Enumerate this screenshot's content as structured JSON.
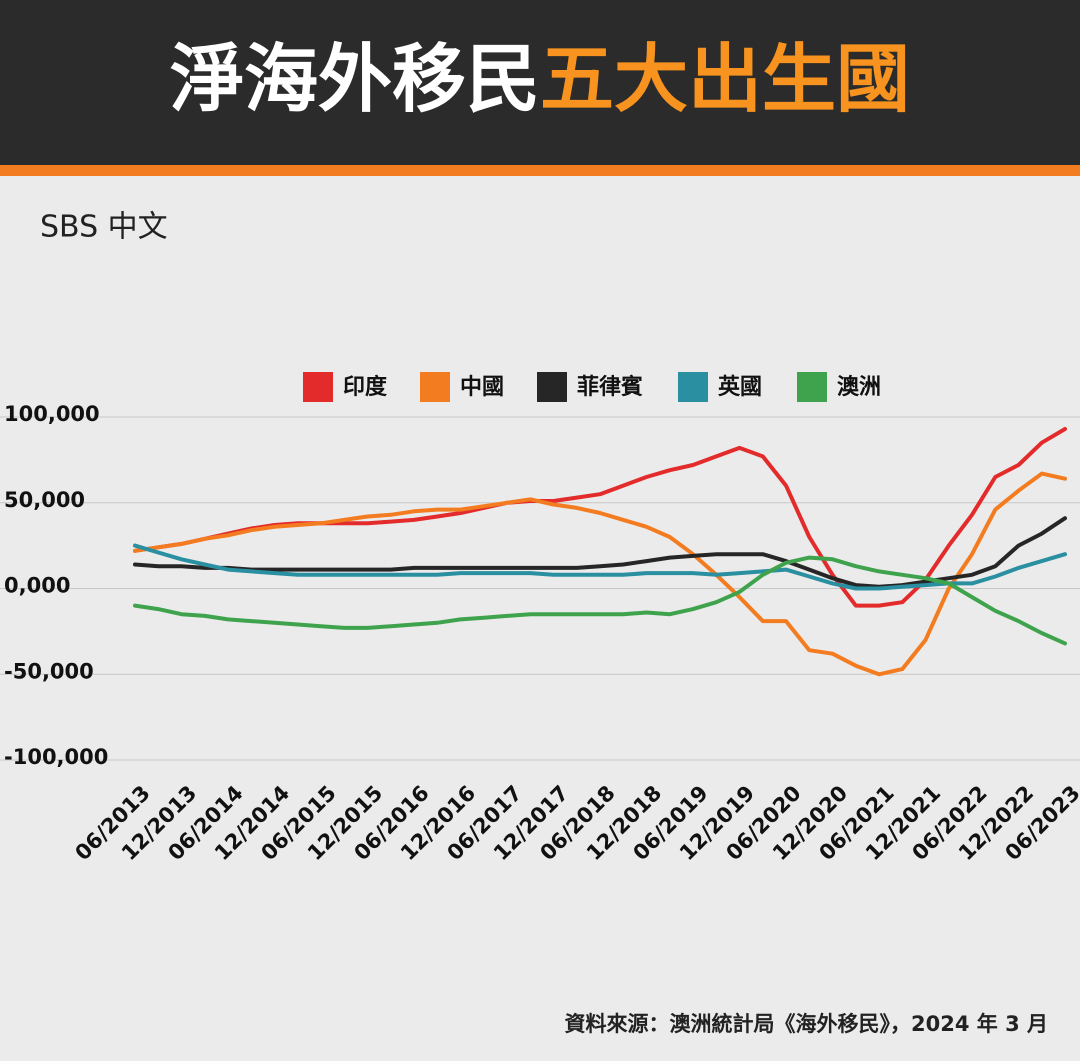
{
  "chart_data": {
    "type": "line",
    "title": "淨海外移民",
    "title_highlight": "五大出生國",
    "brand": "SBS 中文",
    "source": "資料來源：澳洲統計局《海外移民》，2024 年 3 月",
    "categories": [
      "06/2013",
      null,
      "12/2013",
      null,
      "06/2014",
      null,
      "12/2014",
      null,
      "06/2015",
      null,
      "12/2015",
      null,
      "06/2016",
      null,
      "12/2016",
      null,
      "06/2017",
      null,
      "12/2017",
      null,
      "06/2018",
      null,
      "12/2018",
      null,
      "06/2019",
      null,
      "12/2019",
      null,
      "06/2020",
      null,
      "12/2020",
      null,
      "06/2021",
      null,
      "12/2021",
      null,
      "06/2022",
      null,
      "12/2022",
      null,
      "06/2023"
    ],
    "series": [
      {
        "name": "印度",
        "color": "#e32b2b",
        "values": [
          22000,
          24000,
          26000,
          29000,
          32000,
          35000,
          37000,
          38000,
          38000,
          38000,
          38000,
          39000,
          40000,
          42000,
          44000,
          47000,
          50000,
          51000,
          51000,
          53000,
          55000,
          60000,
          65000,
          69000,
          72000,
          77000,
          82000,
          77000,
          60000,
          30000,
          8000,
          -10000,
          -10000,
          -8000,
          5000,
          25000,
          43000,
          65000,
          72000,
          85000,
          93000
        ]
      },
      {
        "name": "中國",
        "color": "#f47c20",
        "values": [
          22000,
          24000,
          26000,
          29000,
          31000,
          34000,
          36000,
          37000,
          38000,
          40000,
          42000,
          43000,
          45000,
          46000,
          46000,
          48000,
          50000,
          52000,
          49000,
          47000,
          44000,
          40000,
          36000,
          30000,
          20000,
          8000,
          -5000,
          -19000,
          -19000,
          -36000,
          -38000,
          -45000,
          -50000,
          -47000,
          -30000,
          0,
          20000,
          46000,
          57000,
          67000,
          64000
        ]
      },
      {
        "name": "菲律賓",
        "color": "#262626",
        "values": [
          14000,
          13000,
          13000,
          12000,
          12000,
          11000,
          11000,
          11000,
          11000,
          11000,
          11000,
          11000,
          12000,
          12000,
          12000,
          12000,
          12000,
          12000,
          12000,
          12000,
          13000,
          14000,
          16000,
          18000,
          19000,
          20000,
          20000,
          20000,
          16000,
          11000,
          6000,
          2000,
          1000,
          2000,
          4000,
          6000,
          8000,
          13000,
          25000,
          32000,
          41000
        ]
      },
      {
        "name": "英國",
        "color": "#2a8fa0",
        "values": [
          25000,
          21000,
          17000,
          14000,
          11000,
          10000,
          9000,
          8000,
          8000,
          8000,
          8000,
          8000,
          8000,
          8000,
          9000,
          9000,
          9000,
          9000,
          8000,
          8000,
          8000,
          8000,
          9000,
          9000,
          9000,
          8000,
          9000,
          10000,
          11000,
          7000,
          3000,
          0,
          0,
          1000,
          2000,
          3000,
          3000,
          7000,
          12000,
          16000,
          20000
        ]
      },
      {
        "name": "澳洲",
        "color": "#3fa34d",
        "values": [
          -10000,
          -12000,
          -15000,
          -16000,
          -18000,
          -19000,
          -20000,
          -21000,
          -22000,
          -23000,
          -23000,
          -22000,
          -21000,
          -20000,
          -18000,
          -17000,
          -16000,
          -15000,
          -15000,
          -15000,
          -15000,
          -15000,
          -14000,
          -15000,
          -12000,
          -8000,
          -2000,
          8000,
          15000,
          18000,
          17000,
          13000,
          10000,
          8000,
          6000,
          3000,
          -5000,
          -13000,
          -19000,
          -26000,
          -32000
        ]
      }
    ],
    "ylim": [
      -100000,
      100000
    ],
    "yticks": [
      {
        "value": -100000,
        "label": "-100,000"
      },
      {
        "value": -50000,
        "label": "-50,000"
      },
      {
        "value": 0,
        "label": "0,000"
      },
      {
        "value": 50000,
        "label": "50,000"
      },
      {
        "value": 100000,
        "label": "100,000"
      }
    ],
    "grid": true
  }
}
